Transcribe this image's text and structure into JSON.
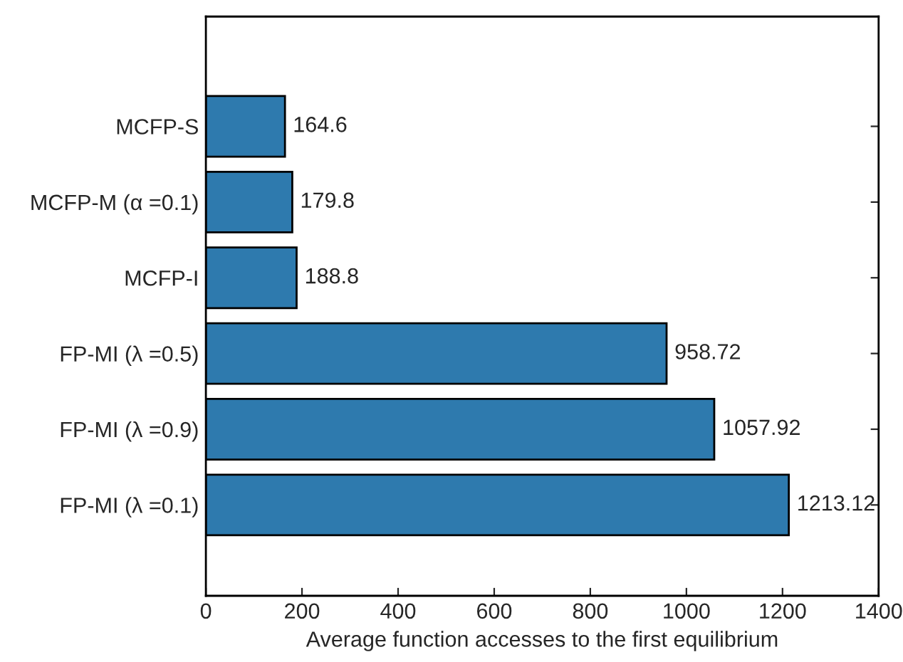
{
  "chart_data": {
    "type": "bar",
    "orientation": "horizontal",
    "xlabel": "Average function accesses to the first equilibrium",
    "categories": [
      "MCFP-S",
      "MCFP-M (α =0.1)",
      "MCFP-I",
      "FP-MI (λ =0.5)",
      "FP-MI (λ =0.9)",
      "FP-MI (λ =0.1)"
    ],
    "values": [
      164.6,
      179.8,
      188.8,
      958.72,
      1057.92,
      1213.12
    ],
    "color": "#2e7aae",
    "data_labels": true,
    "xlim": [
      0,
      1400
    ],
    "xticks": [
      0,
      200,
      400,
      600,
      800,
      1000,
      1200,
      1400
    ],
    "grid": false
  }
}
